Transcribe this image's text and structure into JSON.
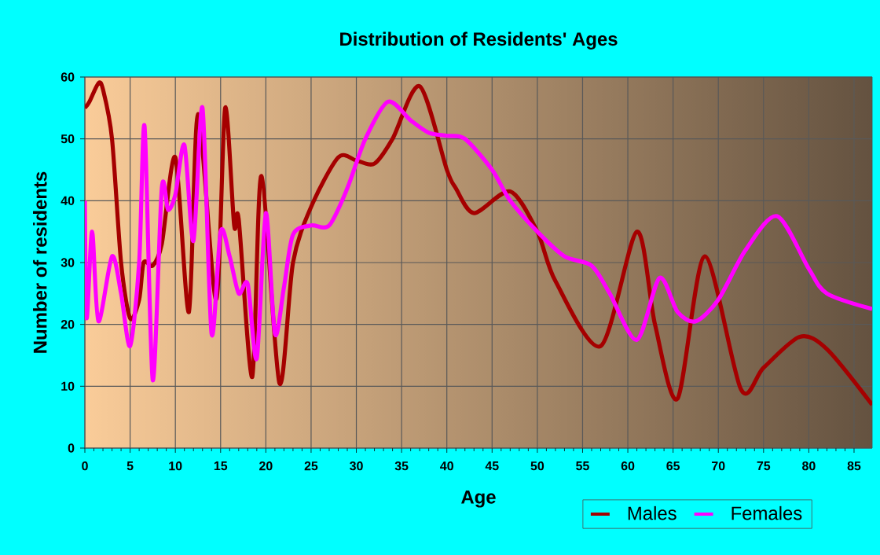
{
  "chart_data": {
    "type": "line",
    "title": "Distribution of Residents' Ages",
    "xlabel": "Age",
    "ylabel": "Number of residents",
    "xlim": [
      0,
      87
    ],
    "ylim": [
      0,
      60
    ],
    "xticks": [
      0,
      5,
      10,
      15,
      20,
      25,
      30,
      35,
      40,
      45,
      50,
      55,
      60,
      65,
      70,
      75,
      80,
      85
    ],
    "yticks": [
      0,
      10,
      20,
      30,
      40,
      50,
      60
    ],
    "grid": true,
    "legend": "bottom right",
    "marker": "none",
    "line_style": "solid",
    "series": [
      {
        "name": "Males",
        "color": "#a50000",
        "x": [
          0,
          0.5,
          1.5,
          2,
          3,
          4,
          5,
          6,
          6.5,
          7.5,
          8.5,
          10,
          11.5,
          12.5,
          14.5,
          15.5,
          16.5,
          17,
          18.5,
          19.5,
          21.5,
          23,
          25,
          28,
          30,
          32,
          34,
          37,
          40,
          41,
          43,
          47,
          50,
          52,
          57,
          61,
          63,
          65.5,
          68.5,
          72.5,
          75,
          79,
          82,
          87
        ],
        "values": [
          55,
          56,
          59,
          58,
          50,
          30,
          21,
          24,
          30,
          29.5,
          33,
          47,
          22,
          54,
          24,
          55,
          36,
          37,
          11.5,
          44,
          10.5,
          30,
          39,
          47,
          46.5,
          46,
          50,
          58.5,
          45,
          42,
          38,
          41.5,
          35,
          27,
          16.5,
          35,
          20,
          8,
          31,
          9.5,
          13,
          18,
          16,
          7
        ]
      },
      {
        "name": "Females",
        "color": "#ff00ff",
        "x": [
          0,
          0.2,
          0.8,
          1.5,
          3,
          4,
          5,
          6,
          6.6,
          7.5,
          8.5,
          9.2,
          10,
          11,
          12,
          13,
          14,
          15,
          16,
          17,
          18,
          19,
          20,
          21,
          22,
          23,
          25,
          27,
          29,
          31,
          33.5,
          36,
          38,
          40,
          42,
          45,
          47,
          50,
          53,
          56,
          58,
          61,
          63.5,
          65.5,
          67.5,
          70,
          73,
          76.5,
          80,
          82,
          87
        ],
        "values": [
          40,
          21,
          35,
          20.5,
          31,
          25,
          16.5,
          30,
          52,
          11,
          42,
          38.5,
          41,
          49,
          33.5,
          55,
          18.5,
          35,
          31,
          25,
          26.5,
          14.5,
          38,
          18.5,
          26,
          34.5,
          36,
          36,
          42,
          50,
          56,
          53,
          51,
          50.5,
          50,
          45,
          40,
          35,
          31,
          29.5,
          25,
          17.5,
          27.5,
          22,
          20.5,
          24,
          32,
          37.5,
          29,
          25,
          22.5
        ]
      }
    ]
  }
}
